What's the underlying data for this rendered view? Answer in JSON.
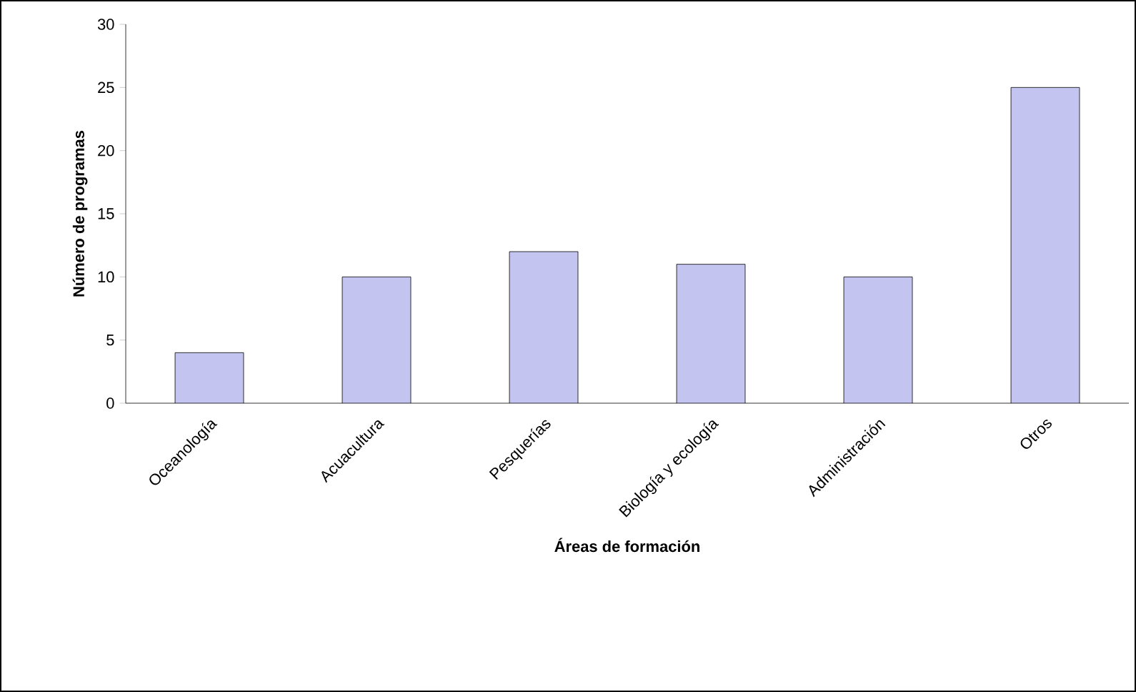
{
  "chart_data": {
    "type": "bar",
    "xlabel": "Áreas de formación",
    "ylabel": "Número de programas",
    "categories": [
      "Oceanología",
      "Acuacultura",
      "Pesquerías",
      "Biología y ecología",
      "Administración",
      "Otros"
    ],
    "values": [
      4,
      10,
      12,
      11,
      10,
      25
    ],
    "color": "#c4c4f0",
    "ylim": [
      0,
      30
    ],
    "yticks": [
      0,
      5,
      10,
      15,
      20,
      25,
      30
    ],
    "grid": false
  }
}
